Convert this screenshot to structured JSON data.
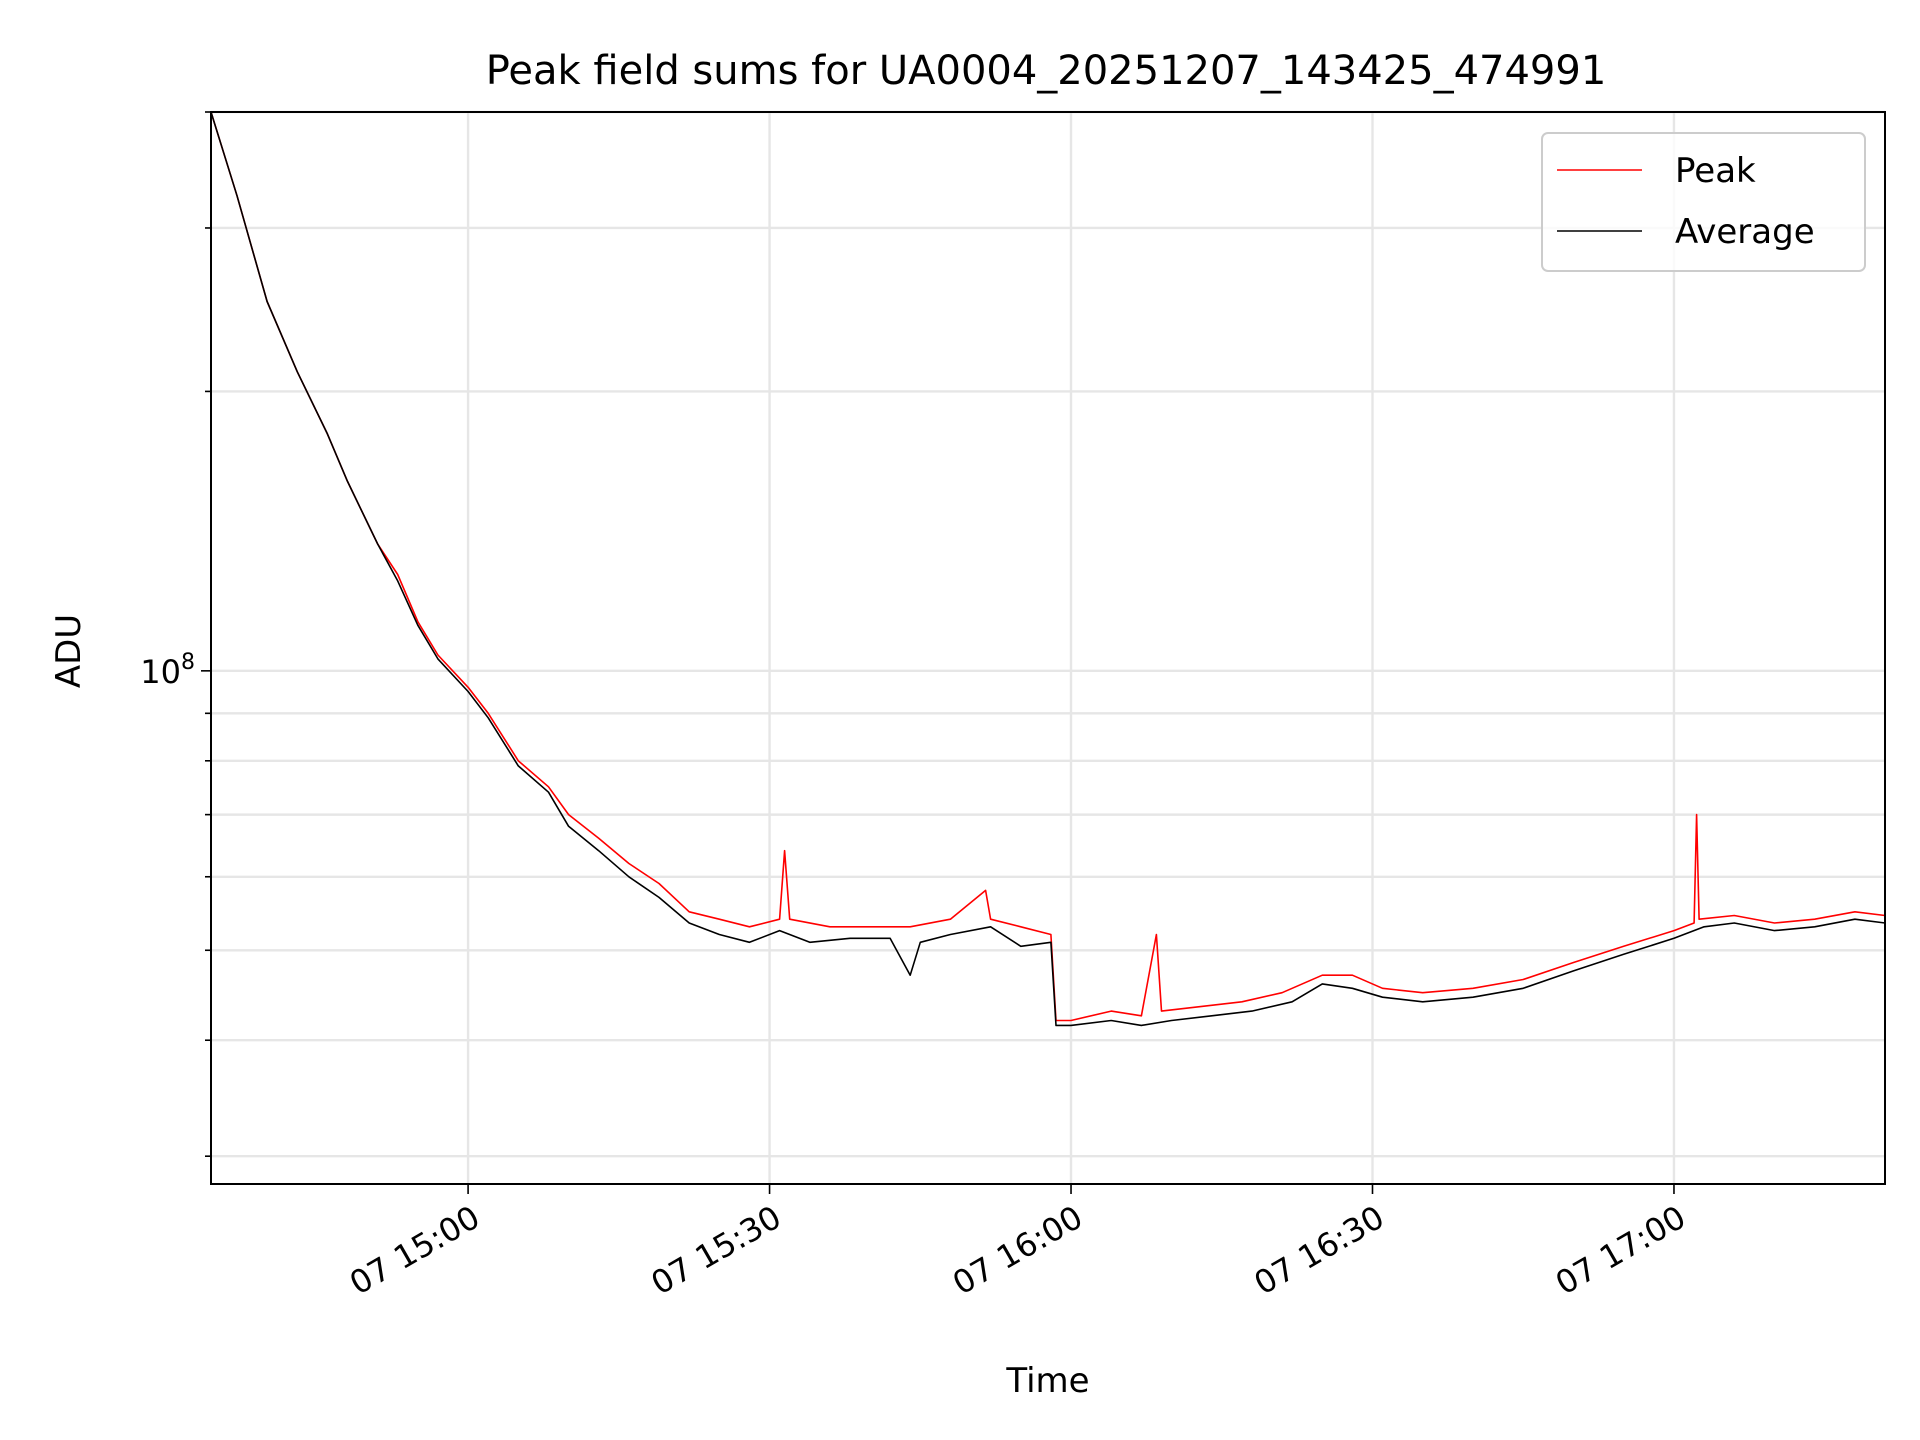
{
  "chart_data": {
    "type": "line",
    "title": "Peak field sums for UA0004_20251207_143425_474991",
    "xlabel": "Time",
    "ylabel": "ADU",
    "y_scale": "log",
    "ylim": [
      28000000,
      400000000
    ],
    "y_tick_label": {
      "base": "10",
      "exp": "8",
      "value": 100000000
    },
    "xlim": [
      "2025-12-07 14:34:25",
      "2025-12-07 17:21:00"
    ],
    "x_tick_labels": [
      "07 15:00",
      "07 15:30",
      "07 16:00",
      "07 16:30",
      "07 17:00"
    ],
    "x_tick_values": [
      "2025-12-07 15:00",
      "2025-12-07 15:30",
      "2025-12-07 16:00",
      "2025-12-07 16:30",
      "2025-12-07 17:00"
    ],
    "grid": true,
    "legend_position": "top-right",
    "series": [
      {
        "name": "Peak",
        "color": "#ff0000",
        "points": [
          [
            "14:34:25",
            400000000
          ],
          [
            "14:37:00",
            325000000
          ],
          [
            "14:40:00",
            250000000
          ],
          [
            "14:43:00",
            210000000
          ],
          [
            "14:46:00",
            180000000
          ],
          [
            "14:48:00",
            160000000
          ],
          [
            "14:51:00",
            137000000
          ],
          [
            "14:53:00",
            127000000
          ],
          [
            "14:55:00",
            113000000
          ],
          [
            "14:57:00",
            104000000
          ],
          [
            "15:00:00",
            96000000
          ],
          [
            "15:02:00",
            90000000
          ],
          [
            "15:05:00",
            80000000
          ],
          [
            "15:08:00",
            75000000
          ],
          [
            "15:10:00",
            70000000
          ],
          [
            "15:13:00",
            66000000
          ],
          [
            "15:16:00",
            62000000
          ],
          [
            "15:19:00",
            59000000
          ],
          [
            "15:22:00",
            55000000
          ],
          [
            "15:25:00",
            54000000
          ],
          [
            "15:28:00",
            53000000
          ],
          [
            "15:31:00",
            54000000
          ],
          [
            "15:31:30",
            64000000
          ],
          [
            "15:32:00",
            54000000
          ],
          [
            "15:36:00",
            53000000
          ],
          [
            "15:40:00",
            53000000
          ],
          [
            "15:44:00",
            53000000
          ],
          [
            "15:48:00",
            54000000
          ],
          [
            "15:51:30",
            58000000
          ],
          [
            "15:52:00",
            54000000
          ],
          [
            "15:55:00",
            53000000
          ],
          [
            "15:58:00",
            52000000
          ],
          [
            "15:58:30",
            42000000
          ],
          [
            "16:00:00",
            42000000
          ],
          [
            "16:04:00",
            43000000
          ],
          [
            "16:07:00",
            42500000
          ],
          [
            "16:08:30",
            52000000
          ],
          [
            "16:09:00",
            43000000
          ],
          [
            "16:13:00",
            43500000
          ],
          [
            "16:17:00",
            44000000
          ],
          [
            "16:21:00",
            45000000
          ],
          [
            "16:25:00",
            47000000
          ],
          [
            "16:28:00",
            47000000
          ],
          [
            "16:31:00",
            45500000
          ],
          [
            "16:35:00",
            45000000
          ],
          [
            "16:40:00",
            45500000
          ],
          [
            "16:45:00",
            46500000
          ],
          [
            "16:50:00",
            48500000
          ],
          [
            "16:55:00",
            50500000
          ],
          [
            "17:00:00",
            52500000
          ],
          [
            "17:02:00",
            53500000
          ],
          [
            "17:02:15",
            70000000
          ],
          [
            "17:02:30",
            54000000
          ],
          [
            "17:06:00",
            54500000
          ],
          [
            "17:10:00",
            53500000
          ],
          [
            "17:14:00",
            54000000
          ],
          [
            "17:18:00",
            55000000
          ],
          [
            "17:21:00",
            54500000
          ]
        ]
      },
      {
        "name": "Average",
        "color": "#000000",
        "points": [
          [
            "14:34:25",
            400000000
          ],
          [
            "14:37:00",
            325000000
          ],
          [
            "14:40:00",
            250000000
          ],
          [
            "14:43:00",
            210000000
          ],
          [
            "14:46:00",
            180000000
          ],
          [
            "14:48:00",
            160000000
          ],
          [
            "14:51:00",
            137000000
          ],
          [
            "14:53:00",
            125000000
          ],
          [
            "14:55:00",
            112000000
          ],
          [
            "14:57:00",
            103000000
          ],
          [
            "15:00:00",
            95000000
          ],
          [
            "15:02:00",
            89000000
          ],
          [
            "15:05:00",
            79000000
          ],
          [
            "15:08:00",
            74000000
          ],
          [
            "15:10:00",
            68000000
          ],
          [
            "15:13:00",
            64000000
          ],
          [
            "15:16:00",
            60000000
          ],
          [
            "15:19:00",
            57000000
          ],
          [
            "15:22:00",
            53500000
          ],
          [
            "15:25:00",
            52000000
          ],
          [
            "15:28:00",
            51000000
          ],
          [
            "15:31:00",
            52500000
          ],
          [
            "15:34:00",
            51000000
          ],
          [
            "15:38:00",
            51500000
          ],
          [
            "15:42:00",
            51500000
          ],
          [
            "15:44:00",
            47000000
          ],
          [
            "15:45:00",
            51000000
          ],
          [
            "15:48:00",
            52000000
          ],
          [
            "15:52:00",
            53000000
          ],
          [
            "15:55:00",
            50500000
          ],
          [
            "15:58:00",
            51000000
          ],
          [
            "15:58:30",
            41500000
          ],
          [
            "16:00:00",
            41500000
          ],
          [
            "16:04:00",
            42000000
          ],
          [
            "16:07:00",
            41500000
          ],
          [
            "16:10:00",
            42000000
          ],
          [
            "16:14:00",
            42500000
          ],
          [
            "16:18:00",
            43000000
          ],
          [
            "16:22:00",
            44000000
          ],
          [
            "16:25:00",
            46000000
          ],
          [
            "16:28:00",
            45500000
          ],
          [
            "16:31:00",
            44500000
          ],
          [
            "16:35:00",
            44000000
          ],
          [
            "16:40:00",
            44500000
          ],
          [
            "16:45:00",
            45500000
          ],
          [
            "16:50:00",
            47500000
          ],
          [
            "16:55:00",
            49500000
          ],
          [
            "17:00:00",
            51500000
          ],
          [
            "17:03:00",
            53000000
          ],
          [
            "17:06:00",
            53500000
          ],
          [
            "17:10:00",
            52500000
          ],
          [
            "17:14:00",
            53000000
          ],
          [
            "17:18:00",
            54000000
          ],
          [
            "17:21:00",
            53500000
          ]
        ]
      }
    ]
  }
}
